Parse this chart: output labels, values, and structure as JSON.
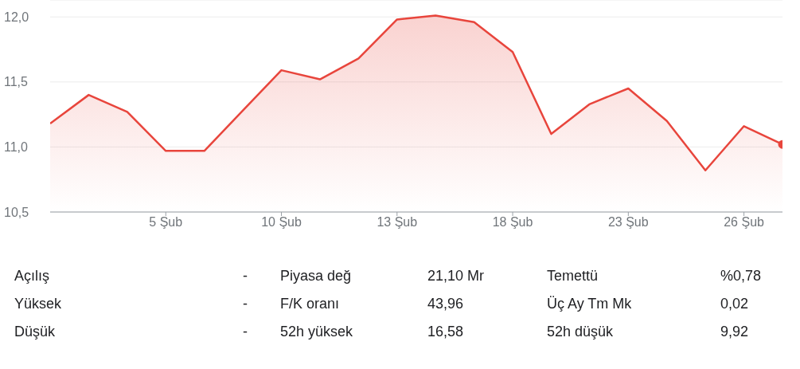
{
  "chart_data": {
    "type": "area",
    "color": "#e8453c",
    "categories": [
      null,
      null,
      null,
      "5 Şub",
      null,
      null,
      "10 Şub",
      null,
      null,
      "13 Şub",
      null,
      null,
      "18 Şub",
      null,
      null,
      "23 Şub",
      null,
      null,
      "26 Şub",
      null
    ],
    "values": [
      11.18,
      11.4,
      11.27,
      10.97,
      10.97,
      11.28,
      11.59,
      11.52,
      11.68,
      11.98,
      12.01,
      11.96,
      11.73,
      11.1,
      11.33,
      11.45,
      11.2,
      10.82,
      11.16,
      11.02
    ],
    "ylim": [
      10.5,
      12.13
    ],
    "yticks": [
      {
        "value": 10.5,
        "label": "10,5"
      },
      {
        "value": 11,
        "label": "11,0"
      },
      {
        "value": 11.5,
        "label": "11,5"
      },
      {
        "value": 12,
        "label": "12,0"
      }
    ],
    "grid": "y",
    "annotations": [
      "Açılış",
      "-",
      "Piyasa değ",
      "21,10 Mr",
      "Temettü",
      "%0,78",
      "Yüksek",
      "-",
      "F/K oranı",
      "43,96",
      "Üç Ay Tm Mk",
      "0,02",
      "Düşük",
      "-",
      "52h yüksek",
      "16,58",
      "52h düşük",
      "9,92"
    ]
  }
}
